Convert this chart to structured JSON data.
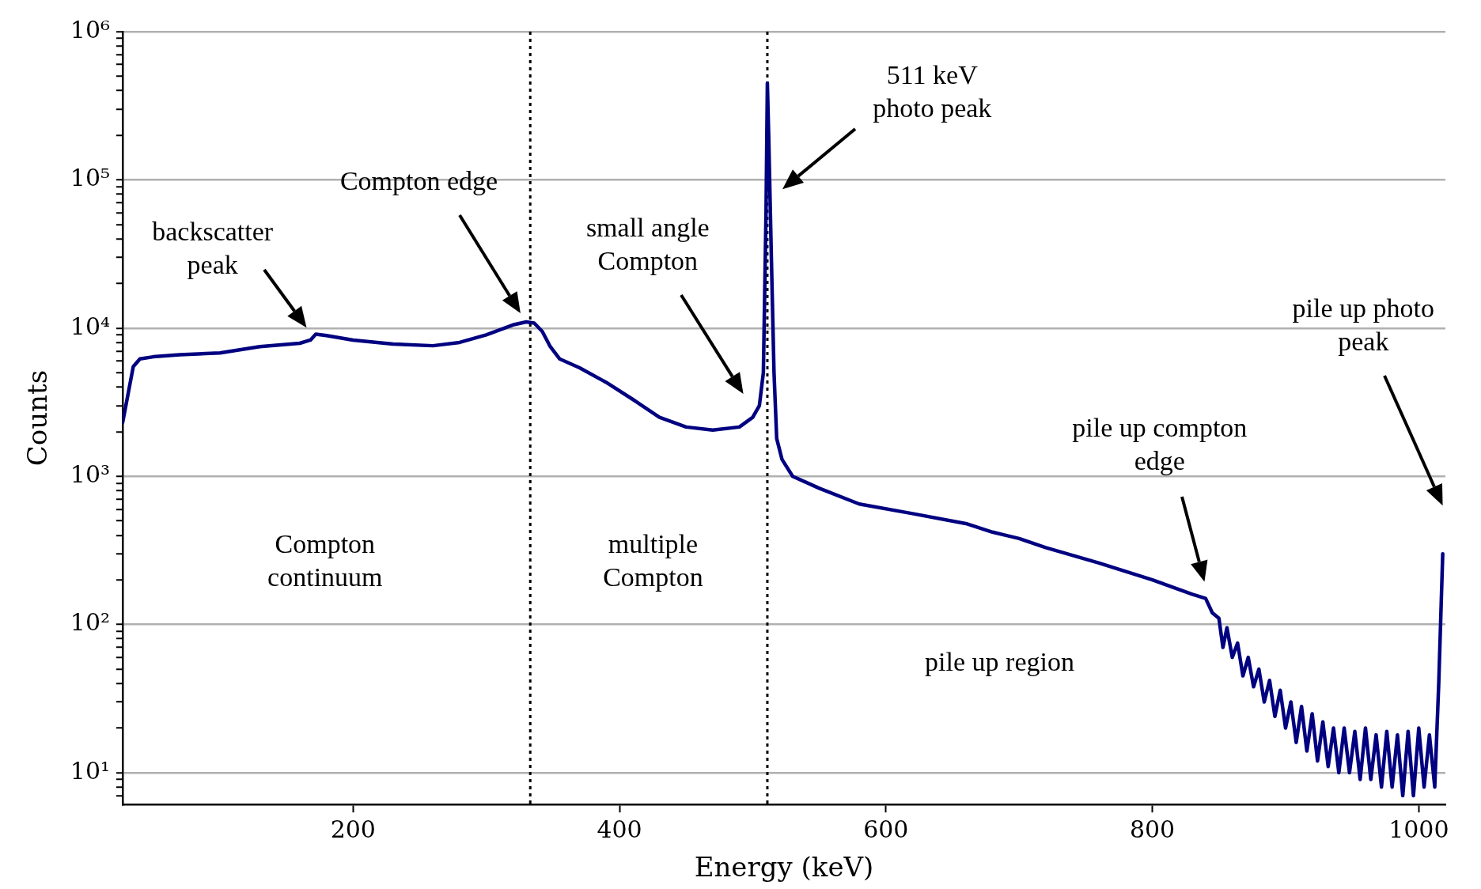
{
  "chart_data": {
    "type": "line",
    "xlabel": "Energy (keV)",
    "ylabel": "Counts",
    "log": "y",
    "grid": "y",
    "legend": false,
    "marker": "none",
    "line_style": "solid",
    "xlim": [
      27,
      1020
    ],
    "xticks": [
      200,
      400,
      600,
      800,
      1000
    ],
    "ylim": [
      6.1,
      1000000
    ],
    "yticks": [
      {
        "value": 7,
        "label": null
      },
      {
        "value": 8,
        "label": null
      },
      {
        "value": 9,
        "label": null
      },
      {
        "value": 10,
        "label": "10¹"
      },
      {
        "value": 20,
        "label": null
      },
      {
        "value": 30,
        "label": null
      },
      {
        "value": 40,
        "label": null
      },
      {
        "value": 50,
        "label": null
      },
      {
        "value": 60,
        "label": null
      },
      {
        "value": 70,
        "label": null
      },
      {
        "value": 80,
        "label": null
      },
      {
        "value": 90,
        "label": null
      },
      {
        "value": 100,
        "label": "10²"
      },
      {
        "value": 200,
        "label": null
      },
      {
        "value": 300,
        "label": null
      },
      {
        "value": 400,
        "label": null
      },
      {
        "value": 500,
        "label": null
      },
      {
        "value": 600,
        "label": null
      },
      {
        "value": 700,
        "label": null
      },
      {
        "value": 800,
        "label": null
      },
      {
        "value": 900,
        "label": null
      },
      {
        "value": 1000,
        "label": "10³"
      },
      {
        "value": 2000,
        "label": null
      },
      {
        "value": 3000,
        "label": null
      },
      {
        "value": 4000,
        "label": null
      },
      {
        "value": 5000,
        "label": null
      },
      {
        "value": 6000,
        "label": null
      },
      {
        "value": 7000,
        "label": null
      },
      {
        "value": 8000,
        "label": null
      },
      {
        "value": 9000,
        "label": null
      },
      {
        "value": 10000,
        "label": "10⁴"
      },
      {
        "value": 20000,
        "label": null
      },
      {
        "value": 30000,
        "label": null
      },
      {
        "value": 40000,
        "label": null
      },
      {
        "value": 50000,
        "label": null
      },
      {
        "value": 60000,
        "label": null
      },
      {
        "value": 70000,
        "label": null
      },
      {
        "value": 80000,
        "label": null
      },
      {
        "value": 90000,
        "label": null
      },
      {
        "value": 100000,
        "label": "10⁵"
      },
      {
        "value": 200000,
        "label": null
      },
      {
        "value": 300000,
        "label": null
      },
      {
        "value": 400000,
        "label": null
      },
      {
        "value": 500000,
        "label": null
      },
      {
        "value": 600000,
        "label": null
      },
      {
        "value": 700000,
        "label": null
      },
      {
        "value": 800000,
        "label": null
      },
      {
        "value": 900000,
        "label": null
      },
      {
        "value": 1000000,
        "label": "10⁶"
      }
    ],
    "series": [
      {
        "color": "#000080",
        "x": [
          27,
          35,
          40,
          50,
          70,
          100,
          130,
          160,
          168,
          172,
          180,
          200,
          230,
          260,
          280,
          300,
          320,
          330,
          336,
          342,
          348,
          355,
          370,
          390,
          410,
          430,
          450,
          470,
          490,
          500,
          505,
          508,
          510,
          511,
          512,
          514,
          516,
          518,
          522,
          530,
          550,
          580,
          620,
          660,
          680,
          700,
          720,
          760,
          800,
          830,
          840,
          845,
          850,
          853,
          856,
          860,
          864,
          868,
          872,
          876,
          880,
          884,
          888,
          892,
          896,
          900,
          904,
          908,
          912,
          916,
          920,
          924,
          928,
          932,
          936,
          940,
          944,
          948,
          952,
          956,
          960,
          964,
          968,
          972,
          976,
          980,
          984,
          988,
          992,
          996,
          1000,
          1004,
          1008,
          1012,
          1015,
          1018
        ],
        "values": [
          2300,
          5500,
          6200,
          6400,
          6600,
          6800,
          7500,
          7900,
          8300,
          9100,
          8900,
          8300,
          7800,
          7600,
          8000,
          9000,
          10500,
          11000,
          10800,
          9500,
          7500,
          6200,
          5400,
          4300,
          3300,
          2500,
          2150,
          2050,
          2150,
          2500,
          3000,
          5000,
          60000,
          450000,
          200000,
          30000,
          5000,
          1800,
          1300,
          1000,
          830,
          650,
          560,
          480,
          420,
          380,
          330,
          260,
          200,
          160,
          150,
          120,
          110,
          70,
          95,
          60,
          75,
          45,
          60,
          38,
          50,
          30,
          42,
          24,
          36,
          20,
          30,
          16,
          28,
          14,
          25,
          12,
          22,
          11,
          20,
          10,
          20,
          10,
          19,
          9,
          20,
          9,
          18,
          8,
          19,
          8,
          18,
          7,
          19,
          7,
          20,
          8,
          18,
          8,
          40,
          300
        ]
      }
    ],
    "ref_lines": [
      {
        "axis": "x",
        "value": 333,
        "color": "#000000",
        "line_style": "dotted"
      },
      {
        "axis": "x",
        "value": 511,
        "color": "#000000",
        "line_style": "dotted"
      }
    ],
    "annotations": [
      "backscatter\npeak",
      "Compton edge",
      "small angle\nCompton",
      "511 keV\nphoto peak",
      "pile up compton\nedge",
      "pile up photo\npeak",
      "Compton\ncontinuum",
      "multiple\nCompton",
      "pile up region"
    ]
  }
}
